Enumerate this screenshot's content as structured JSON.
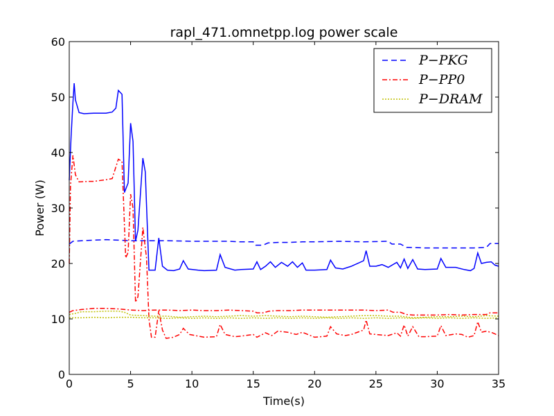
{
  "chart_data": {
    "type": "line",
    "title": "rapl_471.omnetpp.log power scale",
    "xlabel": "Time(s)",
    "ylabel": "Power (W)",
    "xlim": [
      0,
      35
    ],
    "ylim": [
      0,
      60
    ],
    "xticks": [
      0,
      5,
      10,
      15,
      20,
      25,
      30,
      35
    ],
    "yticks": [
      0,
      10,
      20,
      30,
      40,
      50,
      60
    ],
    "grid": false,
    "legend_position": "top-right",
    "series": [
      {
        "name": "P−PKG",
        "color": "#0000ff",
        "style": "dashed",
        "points": [
          [
            0,
            23.5
          ],
          [
            0.3,
            24
          ],
          [
            1,
            24.1
          ],
          [
            2,
            24.2
          ],
          [
            3,
            24.3
          ],
          [
            4,
            24.2
          ],
          [
            5,
            24.1
          ],
          [
            6,
            24.1
          ],
          [
            7,
            24.1
          ],
          [
            8,
            24.1
          ],
          [
            10,
            24.0
          ],
          [
            12,
            24.0
          ],
          [
            13,
            24.0
          ],
          [
            14,
            23.9
          ],
          [
            15,
            23.9
          ],
          [
            15.2,
            23.3
          ],
          [
            15.8,
            23.3
          ],
          [
            16.2,
            23.7
          ],
          [
            17,
            23.8
          ],
          [
            18,
            23.8
          ],
          [
            19,
            23.9
          ],
          [
            20,
            23.9
          ],
          [
            22,
            24.0
          ],
          [
            24,
            23.9
          ],
          [
            26,
            24.0
          ],
          [
            26.3,
            23.5
          ],
          [
            27,
            23.5
          ],
          [
            27.5,
            22.9
          ],
          [
            29,
            22.8
          ],
          [
            31,
            22.8
          ],
          [
            33,
            22.8
          ],
          [
            34,
            22.9
          ],
          [
            34.3,
            23.6
          ],
          [
            35,
            23.6
          ]
        ]
      },
      {
        "name": "P−PP0",
        "color": "#ff0000",
        "style": "dashdot",
        "points": [
          [
            0,
            20
          ],
          [
            0.1,
            34
          ],
          [
            0.3,
            39.5
          ],
          [
            0.5,
            36
          ],
          [
            0.8,
            34.7
          ],
          [
            1.5,
            34.8
          ],
          [
            2,
            34.8
          ],
          [
            3,
            35.1
          ],
          [
            3.5,
            35.3
          ],
          [
            4,
            38.8
          ],
          [
            4.3,
            38.4
          ],
          [
            4.6,
            21
          ],
          [
            4.8,
            22
          ],
          [
            5.0,
            32.5
          ],
          [
            5.2,
            30
          ],
          [
            5.4,
            13
          ],
          [
            5.6,
            14
          ],
          [
            6.0,
            26.5
          ],
          [
            6.3,
            21
          ],
          [
            6.5,
            10
          ],
          [
            6.7,
            6.7
          ],
          [
            7.0,
            6.7
          ],
          [
            7.3,
            11.5
          ],
          [
            7.6,
            8
          ],
          [
            7.9,
            6.5
          ],
          [
            8.5,
            6.7
          ],
          [
            9.0,
            7.2
          ],
          [
            9.3,
            8.3
          ],
          [
            9.8,
            7.2
          ],
          [
            11,
            6.7
          ],
          [
            12,
            6.8
          ],
          [
            12.3,
            9.0
          ],
          [
            12.7,
            7.2
          ],
          [
            13.5,
            6.8
          ],
          [
            14,
            6.9
          ],
          [
            15,
            7.2
          ],
          [
            15.3,
            6.7
          ],
          [
            16,
            7.5
          ],
          [
            16.5,
            7.0
          ],
          [
            17,
            7.8
          ],
          [
            17.8,
            7.6
          ],
          [
            18.5,
            7.2
          ],
          [
            19,
            7.6
          ],
          [
            20,
            6.7
          ],
          [
            21,
            6.9
          ],
          [
            21.3,
            8.6
          ],
          [
            21.8,
            7.3
          ],
          [
            22.5,
            7.0
          ],
          [
            23,
            7.2
          ],
          [
            24,
            8.0
          ],
          [
            24.2,
            9.8
          ],
          [
            24.5,
            7.3
          ],
          [
            25,
            7.2
          ],
          [
            26,
            7.0
          ],
          [
            26.7,
            7.5
          ],
          [
            27,
            6.9
          ],
          [
            27.3,
            8.9
          ],
          [
            27.6,
            6.9
          ],
          [
            28,
            8.6
          ],
          [
            28.5,
            6.8
          ],
          [
            29,
            6.8
          ],
          [
            30,
            6.9
          ],
          [
            30.3,
            8.8
          ],
          [
            30.7,
            7.0
          ],
          [
            31.5,
            7.3
          ],
          [
            32,
            7.2
          ],
          [
            32.5,
            6.7
          ],
          [
            33,
            7.0
          ],
          [
            33.3,
            9.5
          ],
          [
            33.6,
            7.6
          ],
          [
            34,
            7.8
          ],
          [
            34.5,
            7.5
          ],
          [
            35,
            7.0
          ]
        ]
      },
      {
        "name": "P−DRAM",
        "color": "#bfbf00",
        "style": "dotted",
        "points": [
          [
            0,
            10.8
          ],
          [
            0.5,
            11.0
          ],
          [
            1,
            11.3
          ],
          [
            2,
            11.3
          ],
          [
            3,
            11.4
          ],
          [
            4,
            11.4
          ],
          [
            4.5,
            11.2
          ],
          [
            5,
            10.7
          ],
          [
            6,
            10.6
          ],
          [
            7,
            10.5
          ],
          [
            8,
            10.5
          ],
          [
            9,
            10.3
          ],
          [
            10,
            10.4
          ],
          [
            11,
            10.5
          ],
          [
            12,
            10.4
          ],
          [
            13,
            10.5
          ],
          [
            14,
            10.6
          ],
          [
            15,
            10.5
          ],
          [
            16,
            10.6
          ],
          [
            17,
            10.5
          ],
          [
            18,
            10.4
          ],
          [
            19,
            10.5
          ],
          [
            20,
            10.4
          ],
          [
            21,
            10.3
          ],
          [
            22,
            10.4
          ],
          [
            23,
            10.5
          ],
          [
            24,
            10.6
          ],
          [
            25,
            10.6
          ],
          [
            26,
            10.5
          ],
          [
            27,
            10.5
          ],
          [
            28,
            10.2
          ],
          [
            29,
            10.3
          ],
          [
            30,
            10.4
          ],
          [
            31,
            10.4
          ],
          [
            32,
            10.5
          ],
          [
            33,
            10.4
          ],
          [
            34,
            10.6
          ],
          [
            35,
            10.5
          ]
        ]
      },
      {
        "name": "",
        "color": "#0000ff",
        "style": "solid",
        "points": [
          [
            0,
            35
          ],
          [
            0.15,
            43
          ],
          [
            0.3,
            49
          ],
          [
            0.4,
            52.5
          ],
          [
            0.5,
            49.5
          ],
          [
            0.8,
            47.2
          ],
          [
            1.2,
            47.0
          ],
          [
            2,
            47.1
          ],
          [
            3,
            47.1
          ],
          [
            3.5,
            47.3
          ],
          [
            3.8,
            48
          ],
          [
            4.0,
            51.2
          ],
          [
            4.3,
            50.5
          ],
          [
            4.5,
            32.8
          ],
          [
            4.8,
            34.5
          ],
          [
            5.0,
            45.3
          ],
          [
            5.2,
            42
          ],
          [
            5.4,
            24
          ],
          [
            5.6,
            26
          ],
          [
            6.0,
            39
          ],
          [
            6.2,
            36.5
          ],
          [
            6.5,
            18.8
          ],
          [
            7.0,
            18.8
          ],
          [
            7.3,
            24.6
          ],
          [
            7.6,
            19.5
          ],
          [
            8,
            18.8
          ],
          [
            8.5,
            18.7
          ],
          [
            9,
            19.0
          ],
          [
            9.3,
            20.5
          ],
          [
            9.7,
            19.0
          ],
          [
            10.5,
            18.8
          ],
          [
            11,
            18.7
          ],
          [
            12,
            18.8
          ],
          [
            12.3,
            21.6
          ],
          [
            12.7,
            19.3
          ],
          [
            13.5,
            18.8
          ],
          [
            14,
            18.9
          ],
          [
            15,
            19.0
          ],
          [
            15.3,
            20.3
          ],
          [
            15.6,
            18.9
          ],
          [
            16,
            19.5
          ],
          [
            16.4,
            20.3
          ],
          [
            16.8,
            19.3
          ],
          [
            17.3,
            20.2
          ],
          [
            17.8,
            19.5
          ],
          [
            18.2,
            20.3
          ],
          [
            18.6,
            19.3
          ],
          [
            19,
            20.1
          ],
          [
            19.3,
            18.8
          ],
          [
            20,
            18.8
          ],
          [
            21,
            18.9
          ],
          [
            21.3,
            20.6
          ],
          [
            21.7,
            19.2
          ],
          [
            22.3,
            19.0
          ],
          [
            23,
            19.5
          ],
          [
            24,
            20.5
          ],
          [
            24.2,
            22.3
          ],
          [
            24.5,
            19.5
          ],
          [
            25,
            19.5
          ],
          [
            25.5,
            19.8
          ],
          [
            26,
            19.3
          ],
          [
            26.7,
            20.2
          ],
          [
            27,
            19.2
          ],
          [
            27.3,
            20.8
          ],
          [
            27.6,
            19.1
          ],
          [
            28,
            20.7
          ],
          [
            28.4,
            19.0
          ],
          [
            29,
            18.9
          ],
          [
            30,
            19.0
          ],
          [
            30.3,
            20.9
          ],
          [
            30.7,
            19.3
          ],
          [
            31.5,
            19.3
          ],
          [
            32.2,
            18.9
          ],
          [
            32.7,
            18.7
          ],
          [
            33,
            19.1
          ],
          [
            33.3,
            21.9
          ],
          [
            33.6,
            20.0
          ],
          [
            34,
            20.2
          ],
          [
            34.4,
            20.3
          ],
          [
            34.7,
            19.7
          ],
          [
            35,
            19.5
          ]
        ]
      },
      {
        "name": "",
        "color": "#ff0000",
        "style": "dashdot",
        "points": [
          [
            0,
            11.2
          ],
          [
            0.3,
            11.5
          ],
          [
            1,
            11.7
          ],
          [
            2,
            11.9
          ],
          [
            3,
            11.9
          ],
          [
            4,
            11.8
          ],
          [
            5,
            11.6
          ],
          [
            6,
            11.5
          ],
          [
            7,
            11.6
          ],
          [
            8,
            11.6
          ],
          [
            9,
            11.5
          ],
          [
            10,
            11.6
          ],
          [
            11,
            11.5
          ],
          [
            12,
            11.5
          ],
          [
            13,
            11.6
          ],
          [
            14,
            11.5
          ],
          [
            15,
            11.4
          ],
          [
            15.3,
            11.1
          ],
          [
            15.8,
            11.1
          ],
          [
            16.3,
            11.4
          ],
          [
            17,
            11.5
          ],
          [
            18,
            11.5
          ],
          [
            19,
            11.6
          ],
          [
            20,
            11.6
          ],
          [
            21,
            11.6
          ],
          [
            22,
            11.6
          ],
          [
            23,
            11.6
          ],
          [
            24,
            11.6
          ],
          [
            25,
            11.5
          ],
          [
            26,
            11.6
          ],
          [
            26.4,
            11.2
          ],
          [
            27,
            11.2
          ],
          [
            27.5,
            10.8
          ],
          [
            28,
            10.7
          ],
          [
            29,
            10.7
          ],
          [
            30,
            10.7
          ],
          [
            31,
            10.8
          ],
          [
            32,
            10.7
          ],
          [
            33,
            10.8
          ],
          [
            34,
            10.8
          ],
          [
            34.3,
            11.1
          ],
          [
            35,
            11.1
          ]
        ]
      },
      {
        "name": "",
        "color": "#bfbf00",
        "style": "dotted",
        "points": [
          [
            0,
            10.2
          ],
          [
            1,
            10.2
          ],
          [
            2,
            10.3
          ],
          [
            3,
            10.2
          ],
          [
            4,
            10.3
          ],
          [
            5,
            10.3
          ],
          [
            6,
            10.2
          ],
          [
            7,
            10.2
          ],
          [
            8,
            10.1
          ],
          [
            9,
            10.2
          ],
          [
            10,
            10.1
          ],
          [
            11,
            10.2
          ],
          [
            12,
            10.1
          ],
          [
            13,
            10.2
          ],
          [
            14,
            10.1
          ],
          [
            15,
            10.2
          ],
          [
            16,
            10.1
          ],
          [
            17,
            10.2
          ],
          [
            18,
            10.1
          ],
          [
            19,
            10.2
          ],
          [
            20,
            10.1
          ],
          [
            21,
            10.2
          ],
          [
            22,
            10.1
          ],
          [
            23,
            10.2
          ],
          [
            24,
            10.1
          ],
          [
            25,
            10.2
          ],
          [
            26,
            10.1
          ],
          [
            27,
            10.2
          ],
          [
            28,
            10.1
          ],
          [
            29,
            10.2
          ],
          [
            30,
            10.1
          ],
          [
            31,
            10.2
          ],
          [
            32,
            10.1
          ],
          [
            33,
            10.2
          ],
          [
            34,
            10.1
          ],
          [
            35,
            10.2
          ]
        ]
      }
    ]
  }
}
